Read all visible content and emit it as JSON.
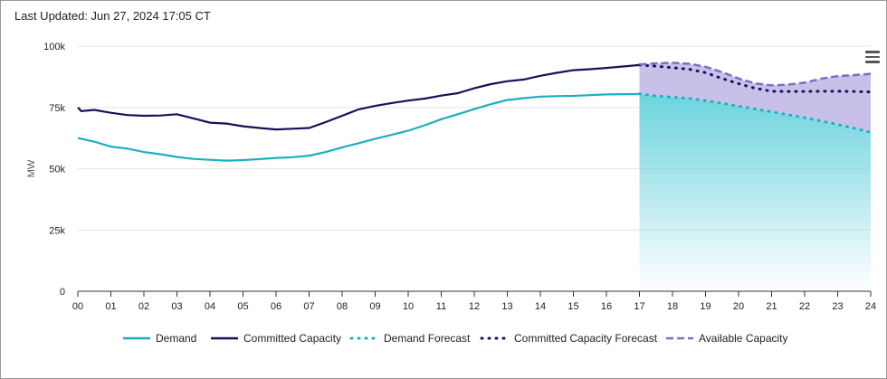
{
  "header": {
    "updated": "Last Updated: Jun 27, 2024 17:05 CT"
  },
  "menu_icon": "hamburger-menu-icon",
  "colors": {
    "demand": "#1ab0be",
    "committed": "#1c0f58",
    "available": "#7b6ec8",
    "available_fill": "#c9c0ea",
    "demand_fill_top": "#6cd3de",
    "grid": "#e6e6e6",
    "axis": "#333333"
  },
  "chart_data": {
    "type": "line",
    "title": "",
    "xlabel": "",
    "ylabel": "MW",
    "xlim": [
      0,
      24
    ],
    "ylim": [
      0,
      100000
    ],
    "x_ticks": [
      "00",
      "01",
      "02",
      "03",
      "04",
      "05",
      "06",
      "07",
      "08",
      "09",
      "10",
      "11",
      "12",
      "13",
      "14",
      "15",
      "16",
      "17",
      "18",
      "19",
      "20",
      "21",
      "22",
      "23",
      "24"
    ],
    "y_ticks": [
      {
        "value": 0,
        "label": "0"
      },
      {
        "value": 25000,
        "label": "25k"
      },
      {
        "value": 50000,
        "label": "50k"
      },
      {
        "value": 75000,
        "label": "75k"
      },
      {
        "value": 100000,
        "label": "100k"
      }
    ],
    "grid": true,
    "legend_position": "bottom",
    "series": [
      {
        "name": "Demand",
        "style": "solid",
        "x": [
          0,
          0.5,
          1,
          1.5,
          2,
          2.5,
          3,
          3.5,
          4,
          4.5,
          5,
          5.5,
          6,
          6.5,
          7,
          7.5,
          8,
          8.5,
          9,
          9.5,
          10,
          10.5,
          11,
          11.5,
          12,
          12.5,
          13,
          13.5,
          14,
          14.5,
          15,
          15.5,
          16,
          16.5,
          17
        ],
        "y": [
          62500,
          61000,
          59000,
          58200,
          56800,
          55900,
          54800,
          54000,
          53600,
          53300,
          53500,
          53900,
          54400,
          54700,
          55300,
          56800,
          58700,
          60400,
          62200,
          63800,
          65500,
          67700,
          70200,
          72200,
          74300,
          76300,
          78000,
          78800,
          79400,
          79600,
          79700,
          80000,
          80300,
          80400,
          80500
        ]
      },
      {
        "name": "Committed Capacity",
        "style": "solid",
        "x": [
          0,
          0.1,
          0.5,
          1,
          1.5,
          2,
          2.5,
          3,
          3.5,
          4,
          4.5,
          5,
          5.5,
          6,
          6.5,
          7,
          7.5,
          8,
          8.5,
          9,
          9.5,
          10,
          10.5,
          11,
          11.5,
          12,
          12.5,
          13,
          13.5,
          14,
          14.5,
          15,
          15.5,
          16,
          16.5,
          17
        ],
        "y": [
          75000,
          73500,
          74000,
          72800,
          71900,
          71600,
          71700,
          72200,
          70500,
          68800,
          68400,
          67300,
          66600,
          66000,
          66300,
          66600,
          69000,
          71600,
          74200,
          75600,
          76800,
          77800,
          78600,
          79800,
          80800,
          82800,
          84500,
          85700,
          86400,
          87900,
          89100,
          90200,
          90600,
          91100,
          91700,
          92300
        ]
      },
      {
        "name": "Demand Forecast",
        "style": "dotted",
        "x": [
          17,
          17.5,
          18,
          18.5,
          19,
          19.5,
          20,
          20.5,
          21,
          21.5,
          22,
          22.5,
          23,
          23.5,
          24
        ],
        "y": [
          80500,
          79700,
          79200,
          78700,
          77800,
          76700,
          75500,
          74400,
          73200,
          72000,
          70800,
          69500,
          68000,
          66500,
          64800
        ]
      },
      {
        "name": "Committed Capacity Forecast",
        "style": "dotted",
        "x": [
          17,
          17.5,
          18,
          18.5,
          19,
          19.5,
          20,
          20.5,
          21,
          21.5,
          22,
          22.5,
          23,
          23.5,
          24
        ],
        "y": [
          92300,
          91800,
          91200,
          90600,
          89200,
          86800,
          84700,
          82800,
          81600,
          81500,
          81500,
          81600,
          81600,
          81500,
          81300
        ]
      },
      {
        "name": "Available Capacity",
        "style": "dashed",
        "x": [
          17,
          17.5,
          18,
          18.5,
          19,
          19.5,
          20,
          20.5,
          21,
          21.5,
          22,
          22.5,
          23,
          23.5,
          24
        ],
        "y": [
          92500,
          93000,
          93200,
          92800,
          91600,
          89400,
          86800,
          84800,
          84000,
          84300,
          85100,
          86700,
          87800,
          88200,
          88700
        ]
      }
    ]
  },
  "legend": [
    {
      "label": "Demand",
      "style": "solid",
      "color_key": "demand"
    },
    {
      "label": "Committed Capacity",
      "style": "solid",
      "color_key": "committed"
    },
    {
      "label": "Demand Forecast",
      "style": "dotted",
      "color_key": "demand"
    },
    {
      "label": "Committed Capacity Forecast",
      "style": "dotted",
      "color_key": "committed"
    },
    {
      "label": "Available Capacity",
      "style": "dashed",
      "color_key": "available"
    }
  ]
}
